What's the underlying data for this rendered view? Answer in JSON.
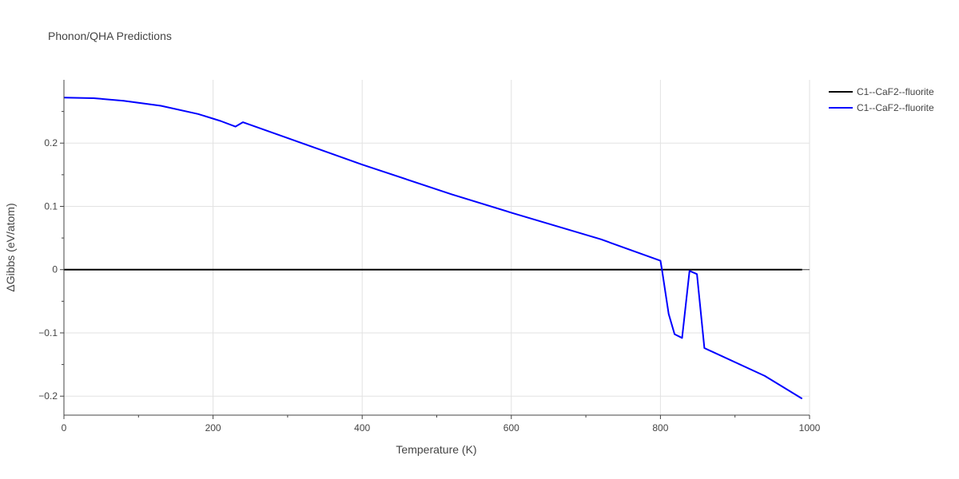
{
  "chart_data": {
    "type": "line",
    "title": "Phonon/QHA Predictions",
    "xlabel": "Temperature (K)",
    "ylabel": "ΔGibbs (eV/atom)",
    "xlim": [
      0,
      1000
    ],
    "ylim": [
      -0.23,
      0.3
    ],
    "x_ticks": [
      0,
      200,
      400,
      600,
      800,
      1000
    ],
    "x_tick_labels": [
      "0",
      "200",
      "400",
      "600",
      "800",
      "1000"
    ],
    "y_ticks": [
      -0.2,
      -0.1,
      0,
      0.1,
      0.2
    ],
    "y_tick_labels": [
      "−0.2",
      "−0.1",
      "0",
      "0.1",
      "0.2"
    ],
    "grid": true,
    "legend_position": "top-right",
    "series": [
      {
        "name": "C1--CaF2--fluorite",
        "color": "#000000",
        "x": [
          0,
          990
        ],
        "y": [
          0,
          0
        ]
      },
      {
        "name": "C1--CaF2--fluorite",
        "color": "#0000ff",
        "x": [
          0,
          40,
          80,
          130,
          180,
          210,
          230,
          240,
          300,
          400,
          520,
          600,
          720,
          800,
          802,
          811,
          819,
          829,
          839,
          849,
          859,
          940,
          990
        ],
        "y": [
          0.272,
          0.271,
          0.267,
          0.259,
          0.246,
          0.235,
          0.226,
          0.233,
          0.208,
          0.166,
          0.119,
          0.09,
          0.048,
          0.014,
          0.0,
          -0.07,
          -0.102,
          -0.108,
          -0.002,
          -0.007,
          -0.124,
          -0.168,
          -0.204
        ]
      }
    ]
  }
}
